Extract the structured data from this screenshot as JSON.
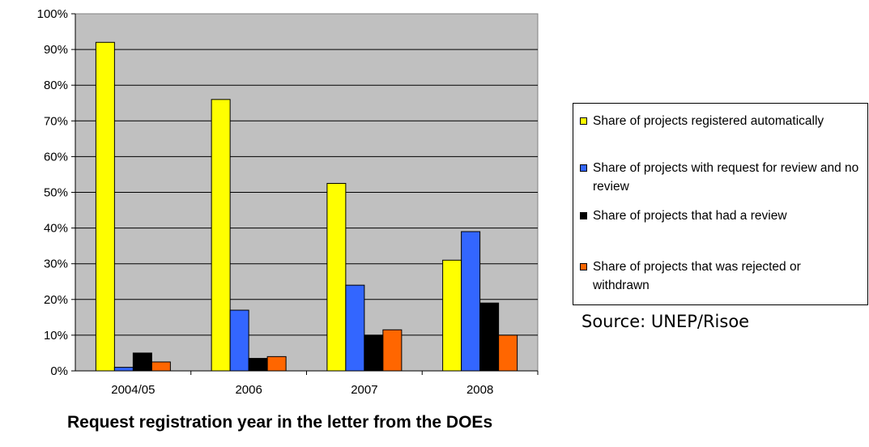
{
  "chart_data": {
    "type": "bar",
    "categories": [
      "2004/05",
      "2006",
      "2007",
      "2008"
    ],
    "series": [
      {
        "name": "Share of projects registered automatically",
        "color": "#ffff00",
        "values": [
          92,
          76,
          52.5,
          31
        ]
      },
      {
        "name": "Share of projects with request for review and no review",
        "color": "#3366ff",
        "values": [
          1,
          17,
          24,
          39
        ]
      },
      {
        "name": "Share of projects that had a review",
        "color": "#000000",
        "values": [
          5,
          3.5,
          10,
          19
        ]
      },
      {
        "name": "Share of projects that was rejected or withdrawn",
        "color": "#ff6600",
        "values": [
          2.5,
          4,
          11.5,
          10
        ]
      }
    ],
    "ylim": [
      0,
      100
    ],
    "yticks": [
      "0%",
      "10%",
      "20%",
      "30%",
      "40%",
      "50%",
      "60%",
      "70%",
      "80%",
      "90%",
      "100%"
    ],
    "xlabel": "Request registration year in the letter from the DOEs",
    "ylabel": "",
    "grid": true,
    "plot_background": "#c0c0c0",
    "legend_position": "right",
    "source": "Source: UNEP/Risoe"
  }
}
